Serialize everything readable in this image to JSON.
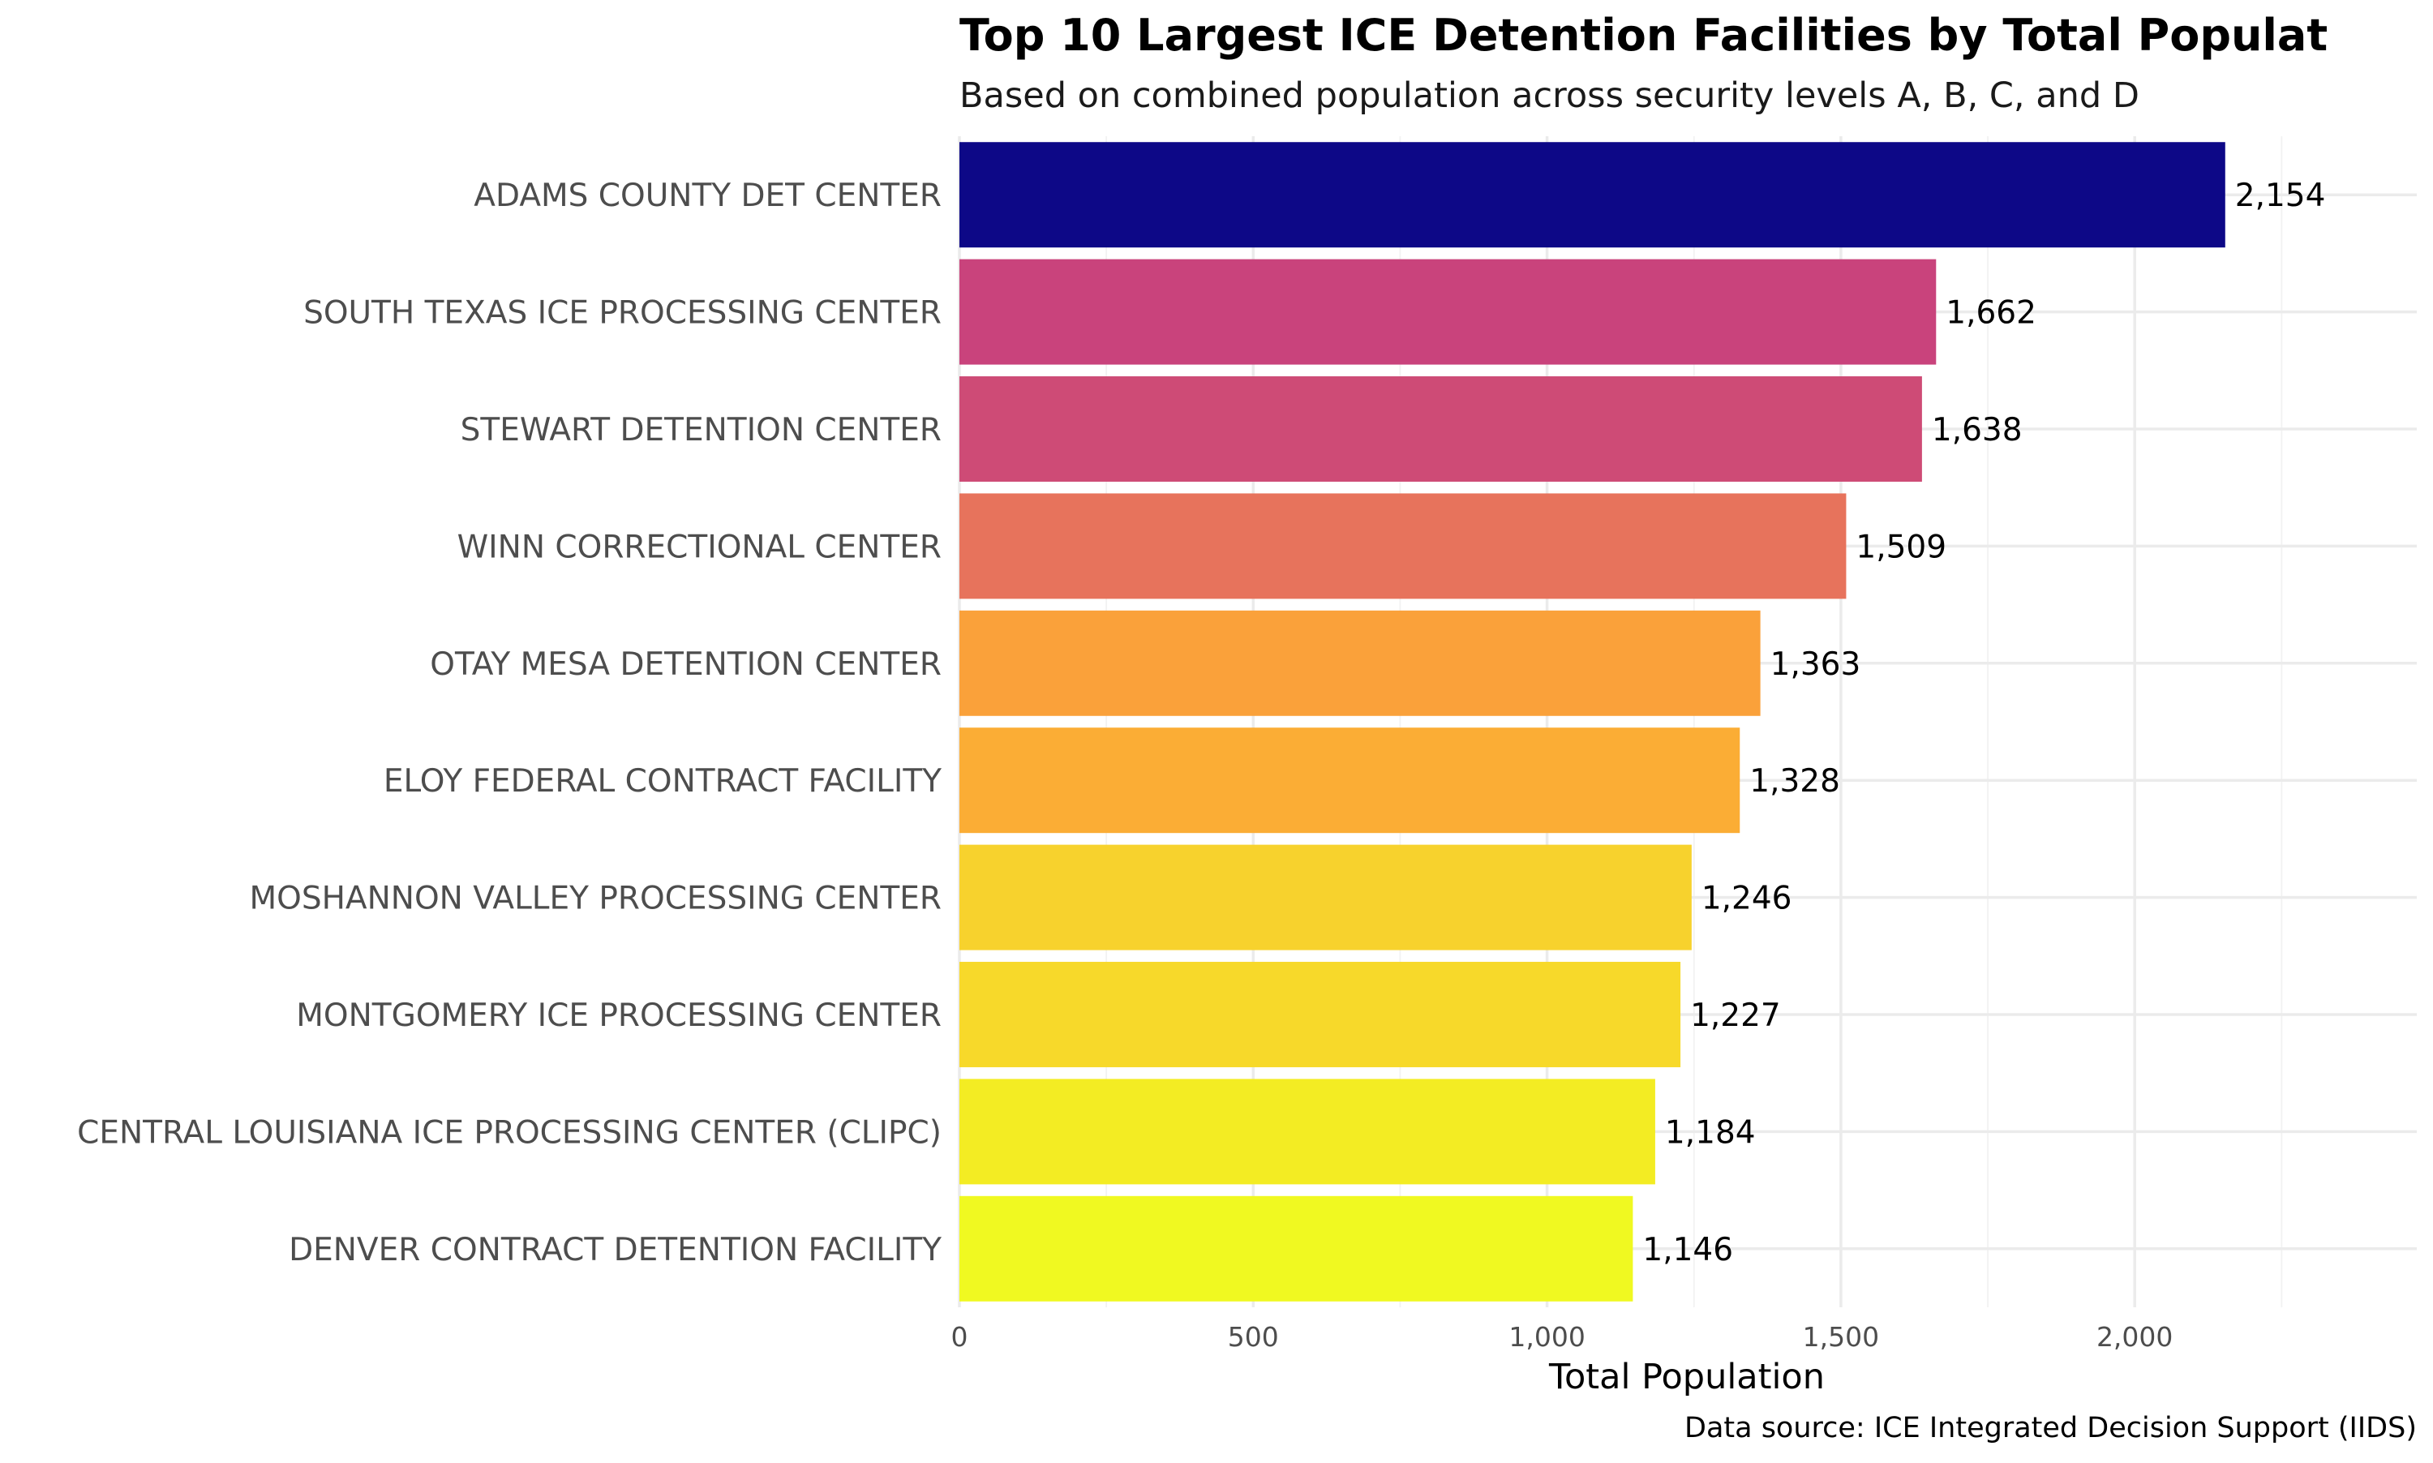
{
  "chart_data": {
    "type": "bar",
    "orientation": "horizontal",
    "title": "Top 10 Largest ICE Detention Facilities by Total Populat",
    "subtitle": "Based on combined population across security levels A, B, C, and D",
    "xlabel": "Total Population",
    "ylabel": "",
    "caption": "Data source: ICE Integrated Decision Support (IIDS)",
    "categories": [
      "ADAMS COUNTY DET CENTER",
      "SOUTH TEXAS ICE PROCESSING CENTER",
      "STEWART DETENTION CENTER",
      "WINN CORRECTIONAL CENTER",
      "OTAY MESA DETENTION CENTER",
      "ELOY FEDERAL CONTRACT FACILITY",
      "MOSHANNON VALLEY PROCESSING CENTER",
      "MONTGOMERY ICE PROCESSING CENTER",
      "CENTRAL LOUISIANA ICE PROCESSING CENTER (CLIPC)",
      "DENVER CONTRACT DETENTION FACILITY"
    ],
    "values": [
      2154,
      1662,
      1638,
      1509,
      1363,
      1328,
      1246,
      1227,
      1184,
      1146
    ],
    "value_labels": [
      "2,154",
      "1,662",
      "1,638",
      "1,509",
      "1,363",
      "1,328",
      "1,246",
      "1,227",
      "1,184",
      "1,146"
    ],
    "colors": [
      "#0d0887",
      "#c9437c",
      "#ce4b76",
      "#e7735c",
      "#faa13a",
      "#fbad35",
      "#f7d22d",
      "#f7d92a",
      "#f3ec23",
      "#f0f921"
    ],
    "xlim": [
      0,
      2480
    ],
    "xticks": [
      0,
      500,
      1000,
      1500,
      2000
    ],
    "xtick_labels": [
      "0",
      "500",
      "1,000",
      "1,500",
      "2,000"
    ],
    "grid": true,
    "legend": "none"
  }
}
